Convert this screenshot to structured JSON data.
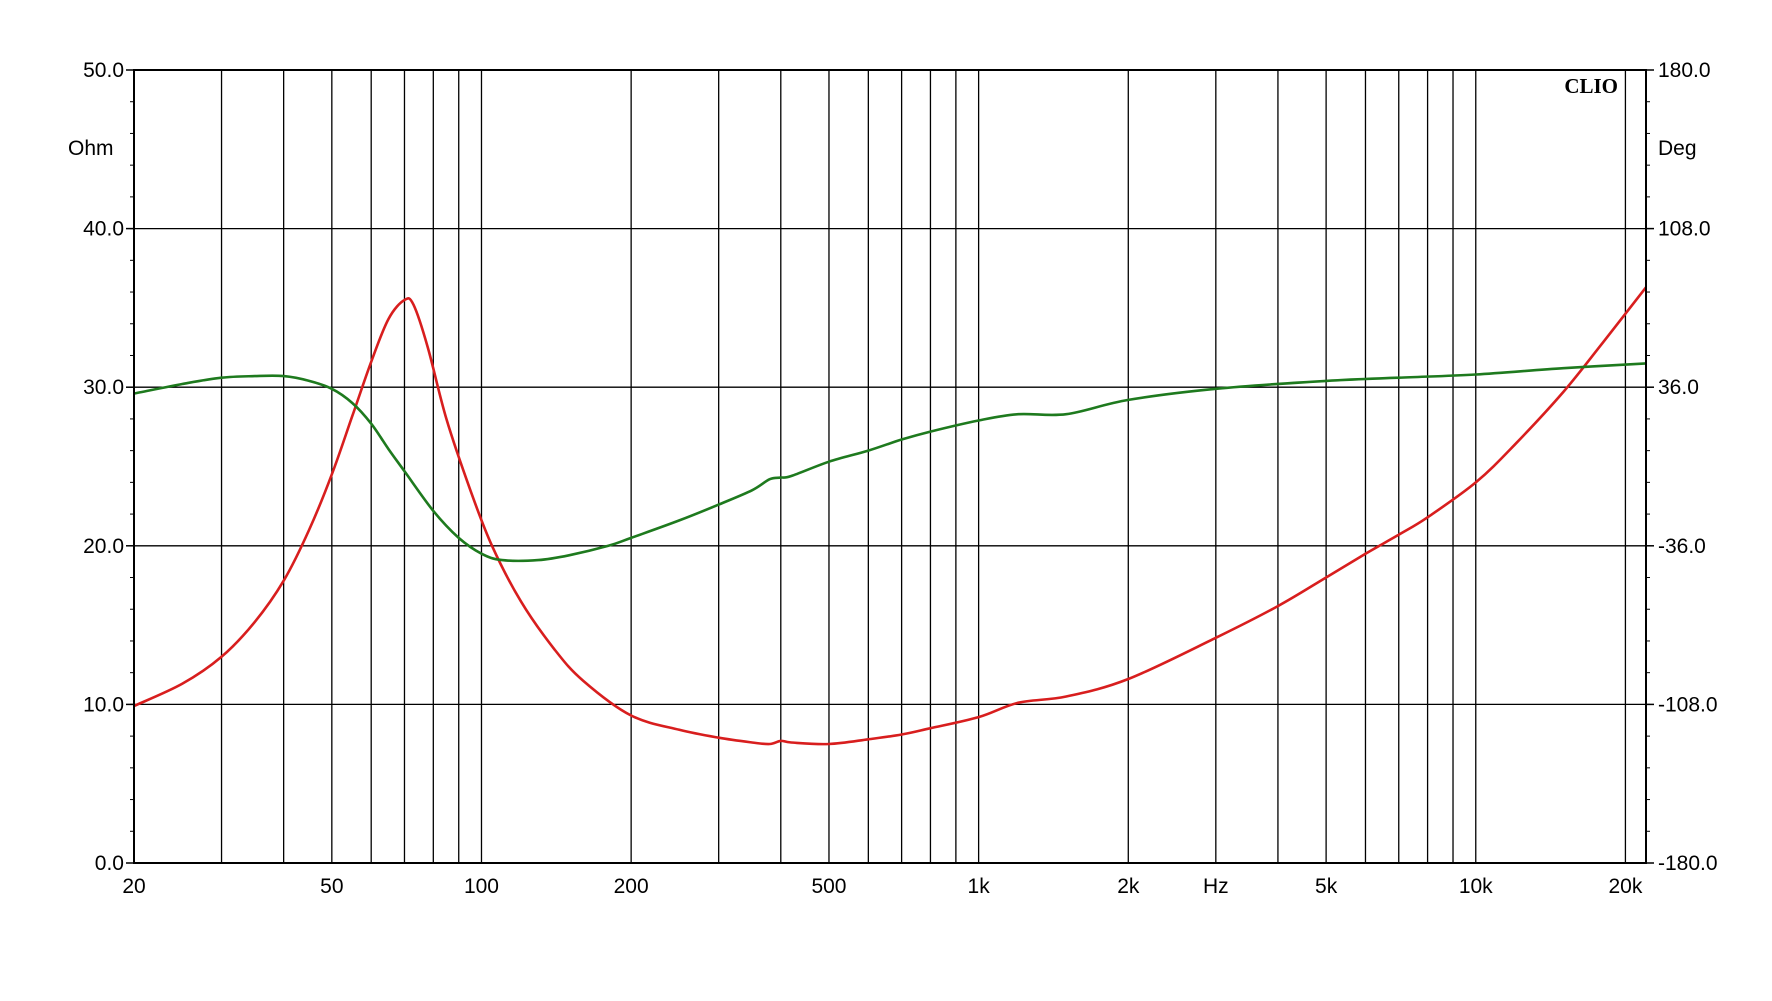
{
  "chart_data": {
    "type": "line",
    "brand": "CLIO",
    "xlabel": "Hz",
    "xscale": "log",
    "xlim": [
      20,
      22000
    ],
    "x_tick_labels": [
      {
        "value": 20,
        "label": "20"
      },
      {
        "value": 50,
        "label": "50"
      },
      {
        "value": 100,
        "label": "100"
      },
      {
        "value": 200,
        "label": "200"
      },
      {
        "value": 500,
        "label": "500"
      },
      {
        "value": 1000,
        "label": "1k"
      },
      {
        "value": 2000,
        "label": "2k"
      },
      {
        "value": 5000,
        "label": "5k"
      },
      {
        "value": 10000,
        "label": "10k"
      },
      {
        "value": 20000,
        "label": "20k"
      }
    ],
    "x_minor_ticks": [
      30,
      40,
      50,
      60,
      70,
      80,
      90,
      100,
      200,
      300,
      400,
      500,
      600,
      700,
      800,
      900,
      1000,
      2000,
      3000,
      4000,
      5000,
      6000,
      7000,
      8000,
      9000,
      10000,
      20000
    ],
    "y_left": {
      "label": "Ohm",
      "ylim": [
        0,
        50
      ],
      "ticks": [
        {
          "value": 0,
          "label": "0.0"
        },
        {
          "value": 10,
          "label": "10.0"
        },
        {
          "value": 20,
          "label": "20.0"
        },
        {
          "value": 30,
          "label": "30.0"
        },
        {
          "value": 40,
          "label": "40.0"
        },
        {
          "value": 50,
          "label": "50.0"
        }
      ]
    },
    "y_right": {
      "label": "Deg",
      "ylim": [
        -180,
        180
      ],
      "ticks": [
        {
          "value": -180,
          "label": "-180.0"
        },
        {
          "value": -108,
          "label": "-108.0"
        },
        {
          "value": -36,
          "label": "-36.0"
        },
        {
          "value": 36,
          "label": "36.0"
        },
        {
          "value": 108,
          "label": "108.0"
        },
        {
          "value": 180,
          "label": "180.0"
        }
      ]
    },
    "grid": true,
    "series": [
      {
        "color": "#d81e1e",
        "axis": "left",
        "points": [
          [
            20,
            9.9
          ],
          [
            25,
            11.3
          ],
          [
            30,
            13.0
          ],
          [
            35,
            15.2
          ],
          [
            40,
            17.8
          ],
          [
            45,
            21.0
          ],
          [
            50,
            24.5
          ],
          [
            55,
            28.2
          ],
          [
            60,
            31.6
          ],
          [
            65,
            34.3
          ],
          [
            70,
            35.5
          ],
          [
            73,
            35.2
          ],
          [
            78,
            32.5
          ],
          [
            85,
            28.0
          ],
          [
            95,
            23.5
          ],
          [
            105,
            20.0
          ],
          [
            120,
            16.5
          ],
          [
            140,
            13.5
          ],
          [
            160,
            11.5
          ],
          [
            200,
            9.3
          ],
          [
            250,
            8.4
          ],
          [
            300,
            7.9
          ],
          [
            350,
            7.6
          ],
          [
            380,
            7.5
          ],
          [
            400,
            7.7
          ],
          [
            420,
            7.6
          ],
          [
            500,
            7.5
          ],
          [
            600,
            7.8
          ],
          [
            700,
            8.1
          ],
          [
            800,
            8.5
          ],
          [
            1000,
            9.2
          ],
          [
            1200,
            10.1
          ],
          [
            1500,
            10.5
          ],
          [
            2000,
            11.6
          ],
          [
            3000,
            14.2
          ],
          [
            4000,
            16.2
          ],
          [
            5000,
            18.0
          ],
          [
            6000,
            19.5
          ],
          [
            7000,
            20.7
          ],
          [
            8000,
            21.8
          ],
          [
            10000,
            24.0
          ],
          [
            12000,
            26.4
          ],
          [
            15000,
            29.7
          ],
          [
            18000,
            32.8
          ],
          [
            22000,
            36.3
          ]
        ]
      },
      {
        "color": "#1e7a1e",
        "axis": "left",
        "points": [
          [
            20,
            29.6
          ],
          [
            25,
            30.2
          ],
          [
            30,
            30.6
          ],
          [
            35,
            30.7
          ],
          [
            40,
            30.7
          ],
          [
            45,
            30.4
          ],
          [
            50,
            29.9
          ],
          [
            55,
            29.0
          ],
          [
            60,
            27.7
          ],
          [
            65,
            26.1
          ],
          [
            70,
            24.7
          ],
          [
            80,
            22.2
          ],
          [
            90,
            20.5
          ],
          [
            100,
            19.5
          ],
          [
            110,
            19.1
          ],
          [
            130,
            19.1
          ],
          [
            150,
            19.4
          ],
          [
            180,
            20.0
          ],
          [
            200,
            20.5
          ],
          [
            250,
            21.6
          ],
          [
            300,
            22.6
          ],
          [
            350,
            23.5
          ],
          [
            380,
            24.2
          ],
          [
            400,
            24.3
          ],
          [
            420,
            24.4
          ],
          [
            500,
            25.3
          ],
          [
            600,
            26.0
          ],
          [
            700,
            26.7
          ],
          [
            800,
            27.2
          ],
          [
            1000,
            27.9
          ],
          [
            1200,
            28.3
          ],
          [
            1500,
            28.3
          ],
          [
            2000,
            29.2
          ],
          [
            3000,
            29.9
          ],
          [
            5000,
            30.4
          ],
          [
            7000,
            30.6
          ],
          [
            10000,
            30.8
          ],
          [
            15000,
            31.2
          ],
          [
            22000,
            31.5
          ]
        ]
      }
    ]
  }
}
